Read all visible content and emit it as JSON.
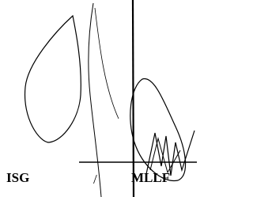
{
  "labels": {
    "left": "ISG",
    "separator": "/",
    "right": "MLLF"
  }
}
